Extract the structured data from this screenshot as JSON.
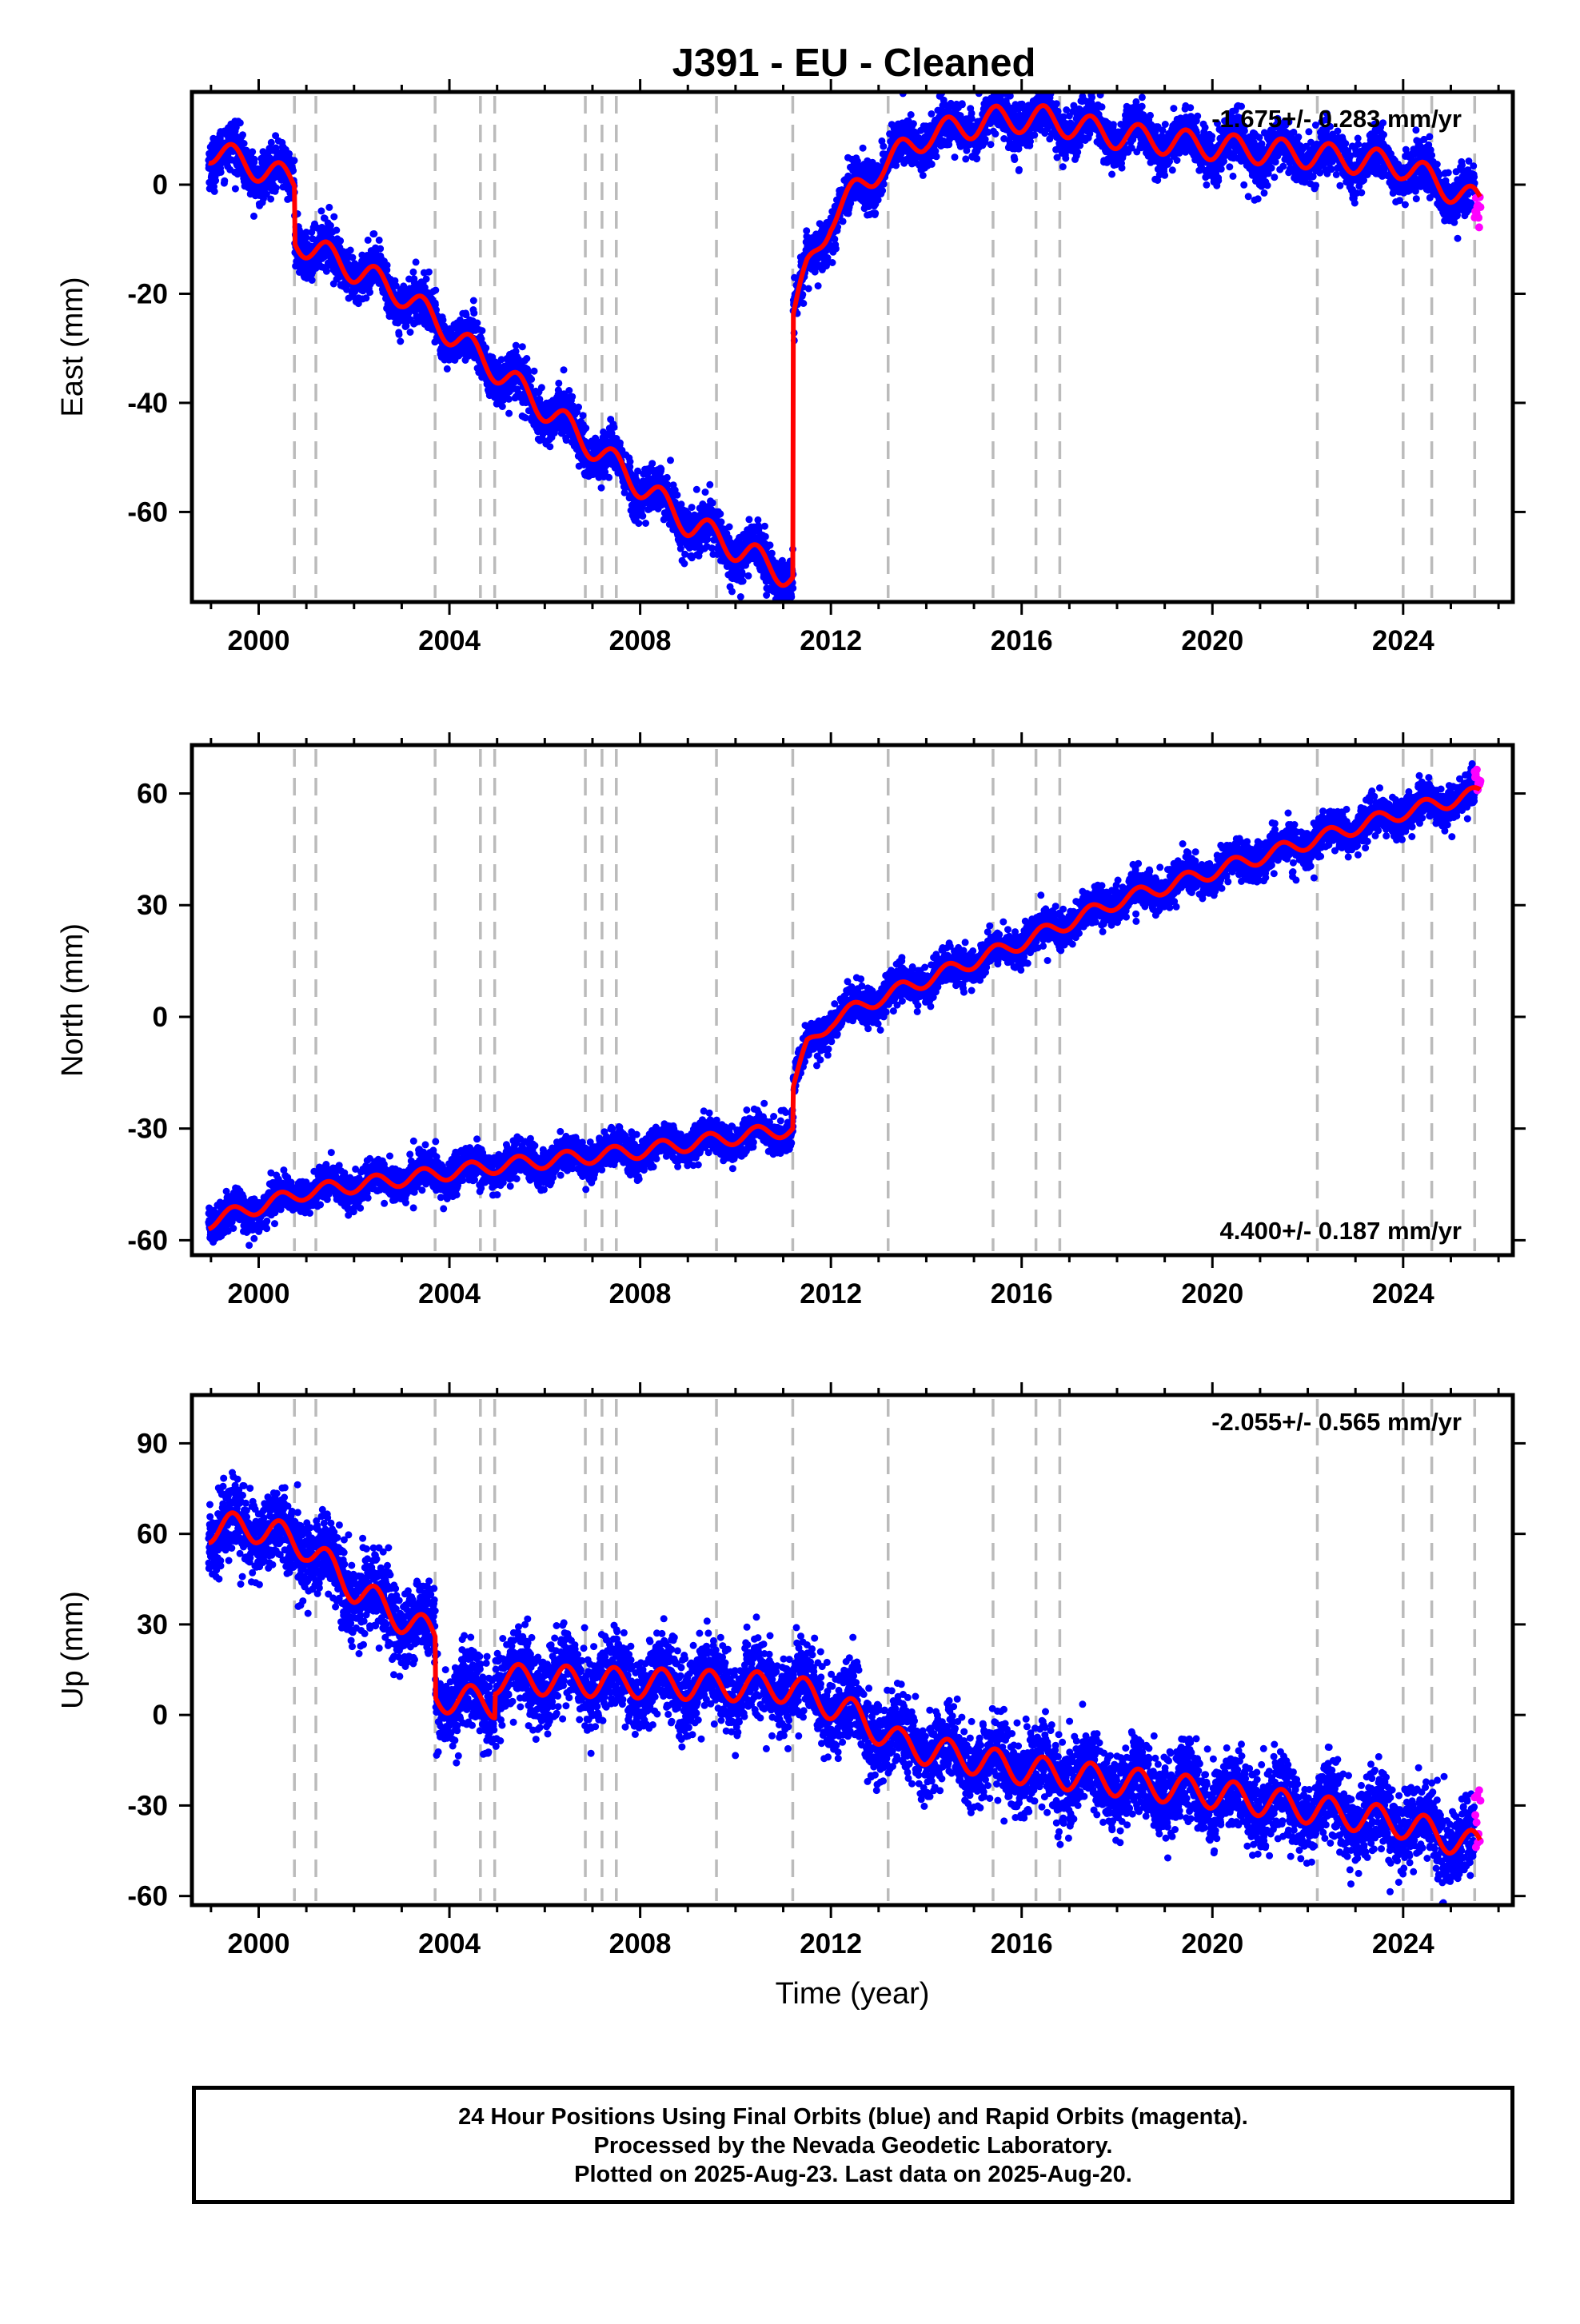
{
  "title": "J391  - EU - Cleaned",
  "footer": {
    "line1": "24 Hour Positions Using Final Orbits (blue) and Rapid Orbits (magenta).",
    "line2": "Processed by the Nevada Geodetic Laboratory.",
    "line3": "Plotted on 2025-Aug-23. Last data on 2025-Aug-20."
  },
  "colors": {
    "final": "#0000ff",
    "rapid": "#ff00ff",
    "model": "#ff0000",
    "event_lines": "#bbbbbb"
  },
  "chart_data": [
    {
      "type": "scatter",
      "name": "east",
      "ylabel": "East (mm)",
      "xlabel": "",
      "rate_label": "-1.675+/- 0.283 mm/yr",
      "rate_position": "top-right",
      "xlim": [
        1998.6,
        2026.3
      ],
      "ylim": [
        -76.5,
        17
      ],
      "xticks": [
        2000,
        2004,
        2008,
        2012,
        2016,
        2020,
        2024
      ],
      "yticks": [
        0,
        -20,
        -40,
        -60
      ],
      "event_lines": [
        2000.75,
        2001.2,
        2003.7,
        2004.65,
        2004.95,
        2006.85,
        2007.2,
        2007.5,
        2009.6,
        2011.2,
        2013.2,
        2015.4,
        2016.3,
        2016.8,
        2022.2,
        2024.0,
        2024.6,
        2025.5
      ],
      "trend_knots": [
        [
          1998.95,
          6.5
        ],
        [
          2000.75,
          0.5
        ],
        [
          2000.76,
          -10
        ],
        [
          2003.0,
          -20
        ],
        [
          2007.0,
          -48
        ],
        [
          2009.0,
          -62
        ],
        [
          2011.2,
          -72
        ]
      ],
      "post_jump": [
        [
          2011.21,
          -24
        ],
        [
          2011.5,
          -16
        ],
        [
          2012.0,
          -6
        ],
        [
          2013.0,
          3
        ],
        [
          2014.0,
          9
        ],
        [
          2015.5,
          12
        ],
        [
          2016.5,
          12
        ],
        [
          2018.0,
          9
        ],
        [
          2020.0,
          7
        ],
        [
          2022.0,
          5.5
        ],
        [
          2024.0,
          3.5
        ],
        [
          2025.6,
          -3.5
        ]
      ],
      "seasonal_amplitude": 2.5,
      "scatter_sd": 2.2,
      "rapid_points": {
        "x_range": [
          2025.5,
          2025.62
        ],
        "y_mean": -4,
        "y_sd": 1.6,
        "count": 10
      }
    },
    {
      "type": "scatter",
      "name": "north",
      "ylabel": "North (mm)",
      "xlabel": "",
      "rate_label": "4.400+/- 0.187 mm/yr",
      "rate_position": "bottom-right",
      "xlim": [
        1998.6,
        2026.3
      ],
      "ylim": [
        -64,
        73
      ],
      "xticks": [
        2000,
        2004,
        2008,
        2012,
        2016,
        2020,
        2024
      ],
      "yticks": [
        60,
        30,
        0,
        -30,
        -60
      ],
      "event_lines": [
        2000.75,
        2001.2,
        2003.7,
        2004.65,
        2004.95,
        2006.85,
        2007.2,
        2007.5,
        2009.6,
        2011.2,
        2013.2,
        2015.4,
        2016.3,
        2016.8,
        2022.2,
        2024.0,
        2024.6,
        2025.5
      ],
      "trend_knots": [
        [
          1998.95,
          -55
        ],
        [
          2001.0,
          -47
        ],
        [
          2005.0,
          -40
        ],
        [
          2008.0,
          -36
        ],
        [
          2011.2,
          -30
        ]
      ],
      "post_jump": [
        [
          2011.21,
          -19
        ],
        [
          2011.5,
          -8
        ],
        [
          2012.0,
          -1
        ],
        [
          2013.0,
          5
        ],
        [
          2014.0,
          10
        ],
        [
          2016.0,
          20
        ],
        [
          2018.0,
          31
        ],
        [
          2020.0,
          39
        ],
        [
          2022.0,
          47
        ],
        [
          2024.0,
          55
        ],
        [
          2025.6,
          60
        ]
      ],
      "seasonal_amplitude": 2,
      "scatter_sd": 2.4,
      "rapid_points": {
        "x_range": [
          2025.5,
          2025.62
        ],
        "y_mean": 63,
        "y_sd": 2.5,
        "count": 12
      }
    },
    {
      "type": "scatter",
      "name": "up",
      "ylabel": "Up (mm)",
      "xlabel": "Time (year)",
      "rate_label": "-2.055+/- 0.565 mm/yr",
      "rate_position": "top-right",
      "xlim": [
        1998.6,
        2026.3
      ],
      "ylim": [
        -63,
        106
      ],
      "xticks": [
        2000,
        2004,
        2008,
        2012,
        2016,
        2020,
        2024
      ],
      "yticks": [
        90,
        60,
        30,
        0,
        -30,
        -60
      ],
      "event_lines": [
        2000.75,
        2001.2,
        2003.7,
        2004.65,
        2004.95,
        2006.85,
        2007.2,
        2007.5,
        2009.6,
        2011.2,
        2013.2,
        2015.4,
        2016.3,
        2016.8,
        2022.2,
        2024.0,
        2024.6,
        2025.5
      ],
      "trend_knots": [
        [
          1998.95,
          62
        ],
        [
          2000.0,
          62
        ],
        [
          2001.0,
          56
        ],
        [
          2002.0,
          42
        ],
        [
          2003.0,
          32
        ],
        [
          2003.7,
          26
        ],
        [
          2003.71,
          6
        ],
        [
          2004.95,
          4
        ],
        [
          2004.96,
          12
        ],
        [
          2007.0,
          11
        ],
        [
          2011.2,
          9
        ],
        [
          2012.5,
          0
        ],
        [
          2013.5,
          -10
        ],
        [
          2016.0,
          -18
        ],
        [
          2020.0,
          -26
        ],
        [
          2024.0,
          -36
        ],
        [
          2025.6,
          -44
        ]
      ],
      "seasonal_amplitude": 5,
      "scatter_sd": 6.5,
      "rapid_points": {
        "x_range": [
          2025.5,
          2025.62
        ],
        "y_mean": -36,
        "y_sd": 8,
        "count": 10
      }
    }
  ]
}
